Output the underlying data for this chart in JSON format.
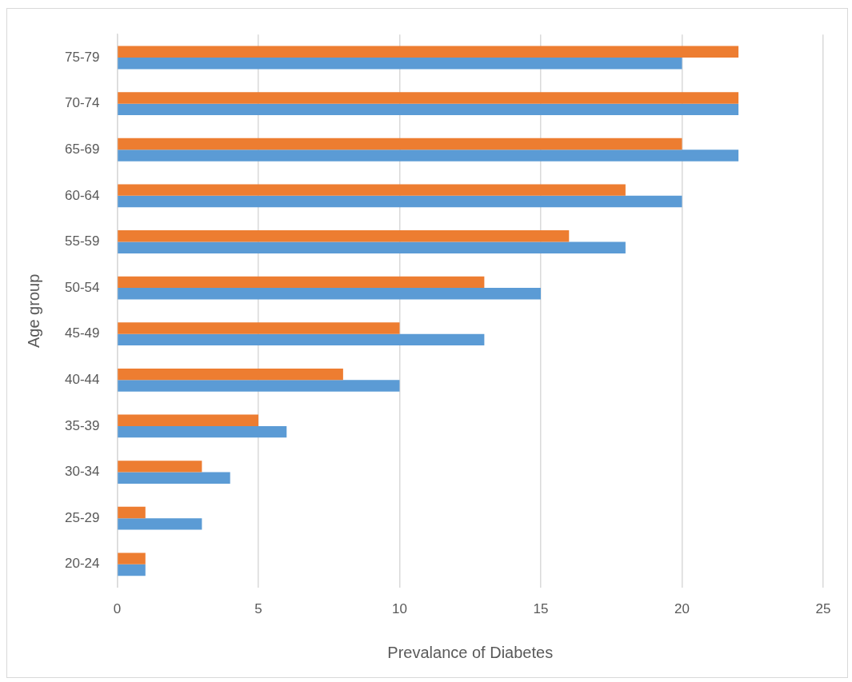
{
  "chart_data": {
    "type": "bar",
    "orientation": "horizontal",
    "xlabel": "Prevalance of Diabetes",
    "ylabel": "Age group",
    "categories": [
      "75-79",
      "70-74",
      "65-69",
      "60-64",
      "55-59",
      "50-54",
      "45-49",
      "40-44",
      "35-39",
      "30-34",
      "25-29",
      "20-24"
    ],
    "series": [
      {
        "color": "#ed7d31",
        "values": [
          22,
          22,
          20,
          18,
          16,
          13,
          10,
          8,
          5,
          3,
          1,
          1
        ]
      },
      {
        "color": "#5b9bd5",
        "values": [
          20,
          22,
          22,
          20,
          18,
          15,
          13,
          10,
          6,
          4,
          3,
          1
        ]
      }
    ],
    "xlim": [
      0,
      25
    ],
    "xticks": [
      0,
      5,
      10,
      15,
      20,
      25
    ],
    "grid": "x",
    "legend": false
  }
}
